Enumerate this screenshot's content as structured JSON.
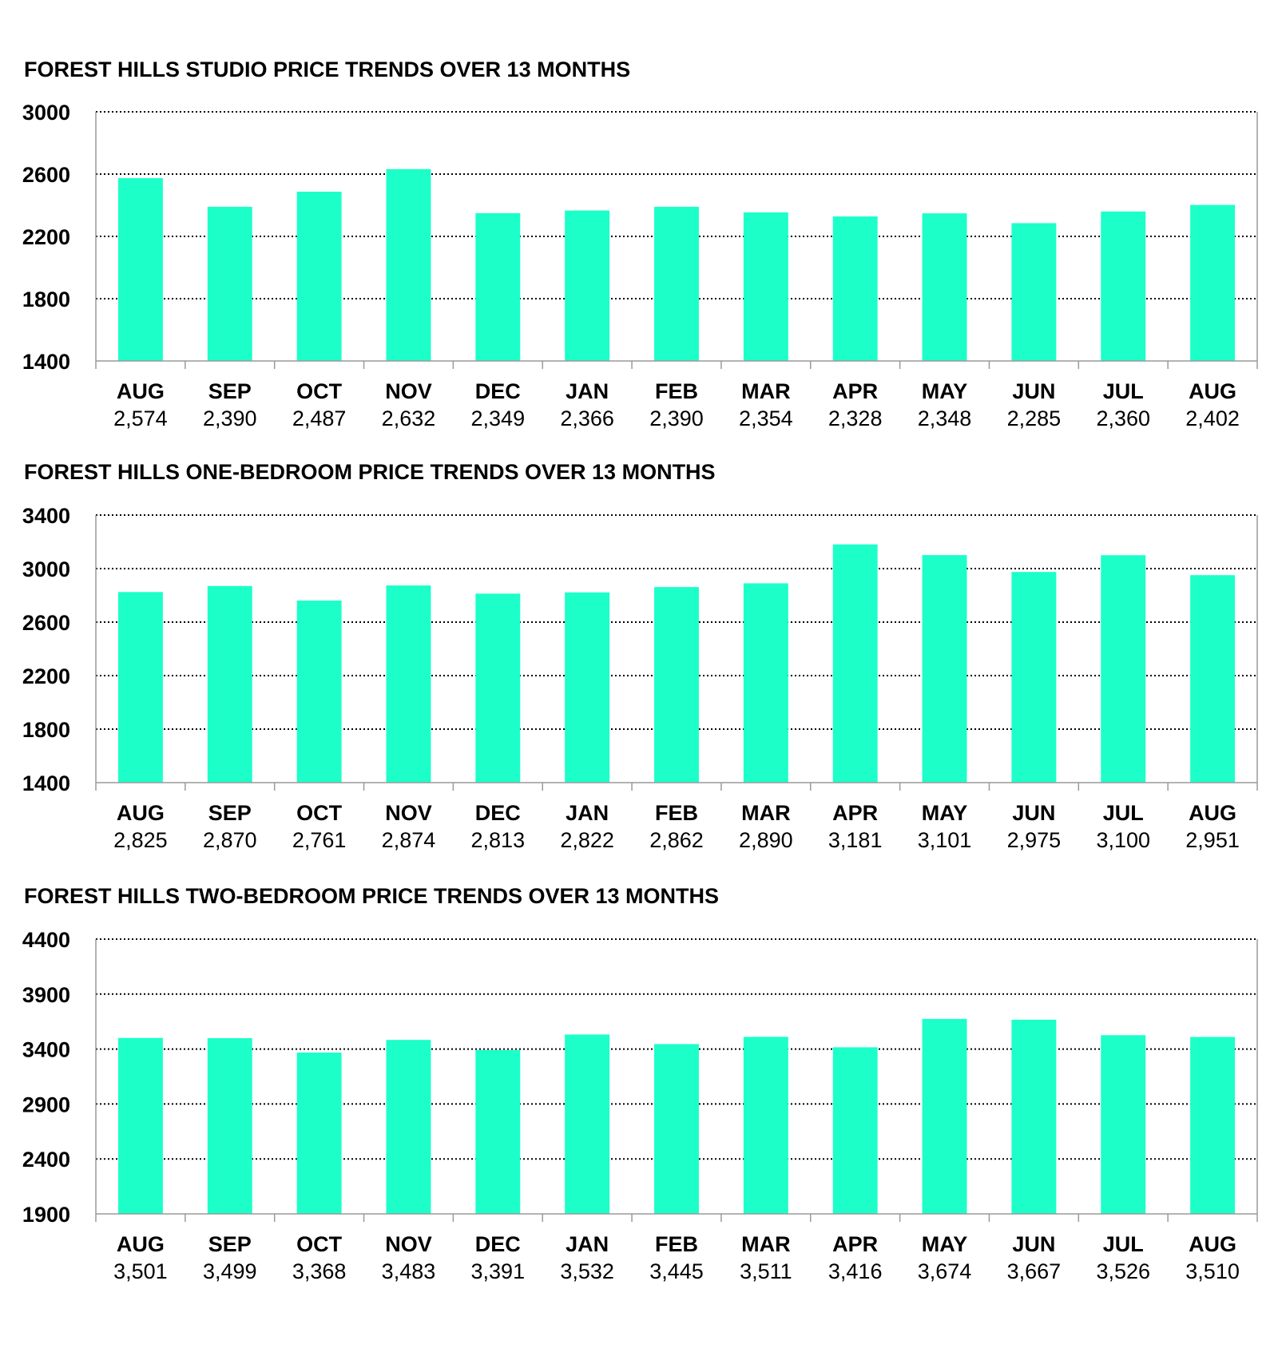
{
  "colors": {
    "bar": "#1cffc9",
    "grid": "#000000",
    "axis": "#9a9a9a"
  },
  "chart_data": [
    {
      "type": "bar",
      "title": "FOREST HILLS STUDIO PRICE TRENDS OVER 13 MONTHS",
      "categories": [
        "AUG",
        "SEP",
        "OCT",
        "NOV",
        "DEC",
        "JAN",
        "FEB",
        "MAR",
        "APR",
        "MAY",
        "JUN",
        "JUL",
        "AUG"
      ],
      "values": [
        2574,
        2390,
        2487,
        2632,
        2349,
        2366,
        2390,
        2354,
        2328,
        2348,
        2285,
        2360,
        2402
      ],
      "value_labels": [
        "2,574",
        "2,390",
        "2,487",
        "2,632",
        "2,349",
        "2,366",
        "2,390",
        "2,354",
        "2,328",
        "2,348",
        "2,285",
        "2,360",
        "2,402"
      ],
      "yticks": [
        1400,
        1800,
        2200,
        2600,
        3000
      ],
      "ylim": [
        1400,
        3000
      ],
      "grid": true,
      "legend": "none"
    },
    {
      "type": "bar",
      "title": "FOREST HILLS ONE-BEDROOM PRICE TRENDS OVER 13 MONTHS",
      "categories": [
        "AUG",
        "SEP",
        "OCT",
        "NOV",
        "DEC",
        "JAN",
        "FEB",
        "MAR",
        "APR",
        "MAY",
        "JUN",
        "JUL",
        "AUG"
      ],
      "values": [
        2825,
        2870,
        2761,
        2874,
        2813,
        2822,
        2862,
        2890,
        3181,
        3101,
        2975,
        3100,
        2951
      ],
      "value_labels": [
        "2,825",
        "2,870",
        "2,761",
        "2,874",
        "2,813",
        "2,822",
        "2,862",
        "2,890",
        "3,181",
        "3,101",
        "2,975",
        "3,100",
        "2,951"
      ],
      "yticks": [
        1400,
        1800,
        2200,
        2600,
        3000,
        3400
      ],
      "ylim": [
        1400,
        3400
      ],
      "grid": true,
      "legend": "none"
    },
    {
      "type": "bar",
      "title": "FOREST HILLS TWO-BEDROOM PRICE TRENDS OVER 13 MONTHS",
      "categories": [
        "AUG",
        "SEP",
        "OCT",
        "NOV",
        "DEC",
        "JAN",
        "FEB",
        "MAR",
        "APR",
        "MAY",
        "JUN",
        "JUL",
        "AUG"
      ],
      "values": [
        3501,
        3499,
        3368,
        3483,
        3391,
        3532,
        3445,
        3511,
        3416,
        3674,
        3667,
        3526,
        3510
      ],
      "value_labels": [
        "3,501",
        "3,499",
        "3,368",
        "3,483",
        "3,391",
        "3,532",
        "3,445",
        "3,511",
        "3,416",
        "3,674",
        "3,667",
        "3,526",
        "3,510"
      ],
      "yticks": [
        1900,
        2400,
        2900,
        3400,
        3900,
        4400
      ],
      "ylim": [
        1900,
        4400
      ],
      "grid": true,
      "legend": "none"
    }
  ]
}
